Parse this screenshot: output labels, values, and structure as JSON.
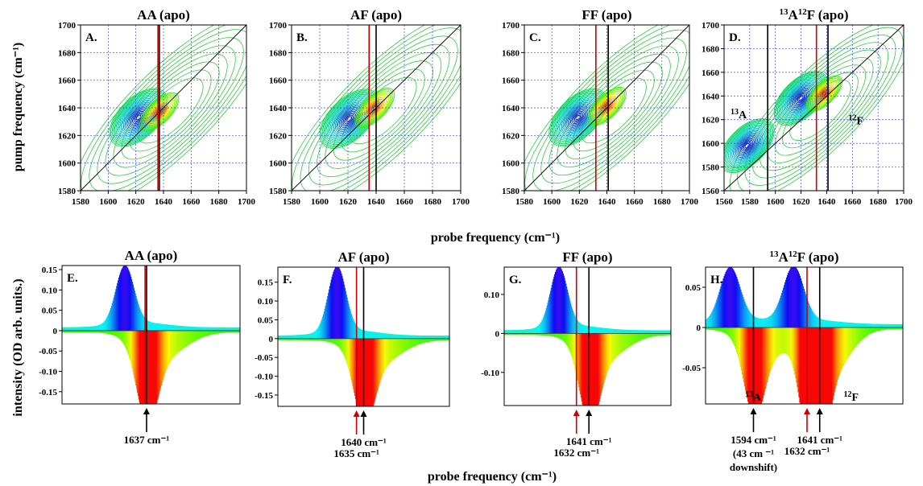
{
  "figure": {
    "x_axis_label": "probe frequency (cm⁻¹)",
    "y_axis_label_top": "pump frequency (cm⁻¹)",
    "y_axis_label_bottom": "intensity (OD  arb. units.)"
  },
  "chart_data": [
    {
      "id": "A",
      "type": "heatmap",
      "title": "AA (apo)",
      "panel_label": "A.",
      "xlim": [
        1580,
        1700
      ],
      "ylim": [
        1580,
        1700
      ],
      "xticks": [
        1580,
        1600,
        1620,
        1640,
        1660,
        1680,
        1700
      ],
      "yticks": [
        1580,
        1600,
        1620,
        1640,
        1660,
        1680,
        1700
      ],
      "diagonal": true,
      "grid": true,
      "peaks": [
        {
          "x": 1622,
          "y": 1633,
          "sign": "negative"
        },
        {
          "x": 1637,
          "y": 1637,
          "sign": "positive"
        }
      ],
      "vlines": [
        {
          "x": 1636,
          "color": "#cc0000"
        },
        {
          "x": 1637,
          "color": "#000000"
        }
      ],
      "annotations": []
    },
    {
      "id": "B",
      "type": "heatmap",
      "title": "AF (apo)",
      "panel_label": "B.",
      "xlim": [
        1580,
        1700
      ],
      "ylim": [
        1580,
        1700
      ],
      "xticks": [
        1580,
        1600,
        1620,
        1640,
        1660,
        1680,
        1700
      ],
      "yticks": [
        1580,
        1600,
        1620,
        1640,
        1660,
        1680,
        1700
      ],
      "diagonal": true,
      "grid": true,
      "peaks": [
        {
          "x": 1621,
          "y": 1632,
          "sign": "negative"
        },
        {
          "x": 1639,
          "y": 1640,
          "sign": "positive"
        }
      ],
      "vlines": [
        {
          "x": 1635,
          "color": "#cc0000"
        },
        {
          "x": 1640,
          "color": "#000000"
        }
      ],
      "annotations": []
    },
    {
      "id": "C",
      "type": "heatmap",
      "title": "FF (apo)",
      "panel_label": "C.",
      "xlim": [
        1580,
        1700
      ],
      "ylim": [
        1580,
        1700
      ],
      "xticks": [
        1580,
        1600,
        1620,
        1640,
        1660,
        1680,
        1700
      ],
      "yticks": [
        1580,
        1600,
        1620,
        1640,
        1660,
        1680,
        1700
      ],
      "diagonal": true,
      "grid": true,
      "peaks": [
        {
          "x": 1619,
          "y": 1633,
          "sign": "negative"
        },
        {
          "x": 1640,
          "y": 1641,
          "sign": "positive"
        }
      ],
      "vlines": [
        {
          "x": 1632,
          "color": "#cc0000"
        },
        {
          "x": 1641,
          "color": "#000000"
        }
      ],
      "annotations": []
    },
    {
      "id": "D",
      "type": "heatmap",
      "title_pre": "13",
      "title_mid": "A",
      "title_sup": "12",
      "title_post": "F (apo)",
      "panel_label": "D.",
      "xlim": [
        1560,
        1700
      ],
      "ylim": [
        1560,
        1700
      ],
      "xticks": [
        1560,
        1580,
        1600,
        1620,
        1640,
        1660,
        1680,
        1700
      ],
      "yticks": [
        1560,
        1580,
        1600,
        1620,
        1640,
        1660,
        1680,
        1700
      ],
      "diagonal": true,
      "grid": true,
      "peaks": [
        {
          "x": 1578,
          "y": 1598,
          "sign": "negative"
        },
        {
          "x": 1620,
          "y": 1638,
          "sign": "negative"
        },
        {
          "x": 1638,
          "y": 1642,
          "sign": "positive"
        }
      ],
      "vlines": [
        {
          "x": 1594,
          "color": "#000000"
        },
        {
          "x": 1632,
          "color": "#cc0000"
        },
        {
          "x": 1641,
          "color": "#000000"
        }
      ],
      "annotations": [
        {
          "sup": "13",
          "text": "A",
          "x": 1565,
          "y": 1621
        },
        {
          "sup": "12",
          "text": "F",
          "x": 1657,
          "y": 1616
        }
      ]
    },
    {
      "id": "E",
      "type": "area",
      "title": "AA (apo)",
      "panel_label": "E.",
      "xlim": [
        1580,
        1700
      ],
      "ylim": [
        -0.18,
        0.16
      ],
      "yticks": [
        0.15,
        0.1,
        0.05,
        0,
        -0.05,
        -0.1,
        -0.15
      ],
      "ytick_labels": [
        "0.15",
        "0.10",
        "0.05",
        "0",
        "-0.05",
        "-0.10",
        "-0.15"
      ],
      "pos_peaks": [
        {
          "x": 1622,
          "y": 0.15,
          "w": 6
        }
      ],
      "neg_peaks": [
        {
          "x": 1637,
          "y": -0.175,
          "w": 7
        }
      ],
      "baseline_pos": 0.008,
      "vlines": [
        {
          "x": 1636,
          "color": "#cc0000"
        },
        {
          "x": 1637,
          "color": "#000000"
        }
      ],
      "arrows": [
        {
          "x": 1637,
          "color": "#000000",
          "label": "1637 cm⁻¹",
          "ly": 1
        }
      ],
      "bottom_labels": []
    },
    {
      "id": "F",
      "type": "area",
      "title": "AF (apo)",
      "panel_label": "F.",
      "xlim": [
        1580,
        1700
      ],
      "ylim": [
        -0.18,
        0.19
      ],
      "yticks": [
        0.15,
        0.1,
        0.05,
        0,
        -0.05,
        -0.1,
        -0.15
      ],
      "ytick_labels": [
        "0.15",
        "0.10",
        "0.05",
        "0",
        "-0.05",
        "-0.10",
        "-0.15"
      ],
      "pos_peaks": [
        {
          "x": 1621,
          "y": 0.18,
          "w": 6
        }
      ],
      "neg_peaks": [
        {
          "x": 1640,
          "y": -0.175,
          "w": 7
        }
      ],
      "baseline_pos": 0.008,
      "vlines": [
        {
          "x": 1635,
          "color": "#cc0000"
        },
        {
          "x": 1640,
          "color": "#000000"
        }
      ],
      "arrows": [
        {
          "x": 1635,
          "color": "#cc0000",
          "label": "1635 cm⁻¹",
          "ly": 2
        },
        {
          "x": 1640,
          "color": "#000000",
          "label": "1640 cm⁻¹",
          "ly": 1
        }
      ],
      "bottom_labels": []
    },
    {
      "id": "G",
      "type": "area",
      "title": "FF (apo)",
      "panel_label": "G.",
      "xlim": [
        1580,
        1700
      ],
      "ylim": [
        -0.185,
        0.17
      ],
      "yticks": [
        0.1,
        0,
        -0.1
      ],
      "ytick_labels": [
        "0.10",
        "0",
        "-0.10"
      ],
      "pos_peaks": [
        {
          "x": 1619,
          "y": 0.16,
          "w": 6
        }
      ],
      "neg_peaks": [
        {
          "x": 1641,
          "y": -0.18,
          "w": 7
        }
      ],
      "baseline_pos": 0.008,
      "vlines": [
        {
          "x": 1632,
          "color": "#cc0000"
        },
        {
          "x": 1641,
          "color": "#000000"
        }
      ],
      "arrows": [
        {
          "x": 1632,
          "color": "#cc0000",
          "label": "1632 cm⁻¹",
          "ly": 2
        },
        {
          "x": 1641,
          "color": "#000000",
          "label": "1641 cm⁻¹",
          "ly": 1
        }
      ],
      "bottom_labels": []
    },
    {
      "id": "H",
      "type": "area",
      "title_pre": "13",
      "title_mid": "A",
      "title_sup": "12",
      "title_post": "F (apo)",
      "panel_label": "H.",
      "xlim": [
        1560,
        1700
      ],
      "ylim": [
        -0.095,
        0.075
      ],
      "yticks": [
        0.05,
        0,
        -0.05
      ],
      "ytick_labels": [
        "0.05",
        "0",
        "-0.05"
      ],
      "pos_peaks": [
        {
          "x": 1577,
          "y": 0.07,
          "w": 7
        },
        {
          "x": 1622,
          "y": 0.07,
          "w": 7
        }
      ],
      "neg_peaks": [
        {
          "x": 1594,
          "y": -0.085,
          "w": 7
        },
        {
          "x": 1632,
          "y": -0.085,
          "w": 6
        },
        {
          "x": 1641,
          "y": -0.09,
          "w": 6
        }
      ],
      "baseline_pos": 0.004,
      "vlines": [
        {
          "x": 1594,
          "color": "#000000"
        },
        {
          "x": 1632,
          "color": "#cc0000"
        },
        {
          "x": 1641,
          "color": "#000000"
        }
      ],
      "arrows": [
        {
          "x": 1594,
          "color": "#000000",
          "label": "1594 cm⁻¹",
          "ly": 1,
          "extra": [
            "(43 cm ⁻¹",
            "downshift)"
          ]
        },
        {
          "x": 1632,
          "color": "#cc0000",
          "label": "1632 cm⁻¹",
          "ly": 2
        },
        {
          "x": 1641,
          "color": "#000000",
          "label": "1641 cm⁻¹",
          "ly": 1
        }
      ],
      "bottom_labels": [
        {
          "sup": "13",
          "text": "A",
          "x": 1588
        },
        {
          "sup": "12",
          "text": "F",
          "x": 1658
        }
      ]
    }
  ]
}
